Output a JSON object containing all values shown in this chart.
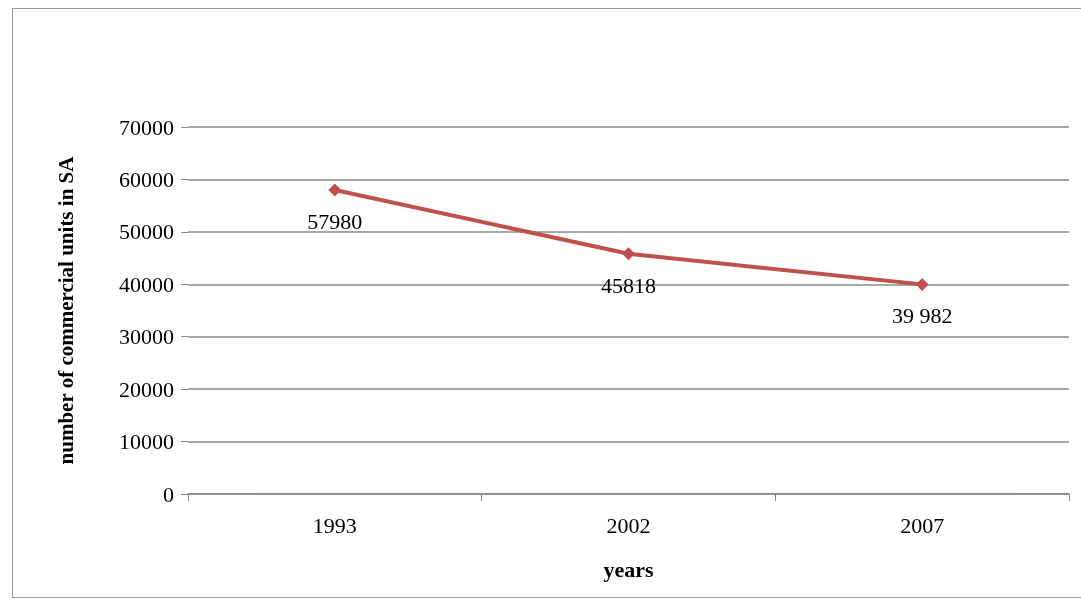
{
  "chart_data": {
    "type": "line",
    "xlabel": "years",
    "ylabel": "number of commercial units in SA",
    "categories": [
      "1993",
      "2002",
      "2007"
    ],
    "series": [
      {
        "color": "#c0504d",
        "values": [
          57980,
          45818,
          39982
        ],
        "value_labels": [
          "57980",
          "45818",
          "39 982"
        ]
      }
    ],
    "ylim": [
      0,
      70000
    ],
    "yticks": [
      0,
      10000,
      20000,
      30000,
      40000,
      50000,
      60000,
      70000
    ],
    "grid": "y",
    "marker": "diamond",
    "line_style": "solid"
  }
}
